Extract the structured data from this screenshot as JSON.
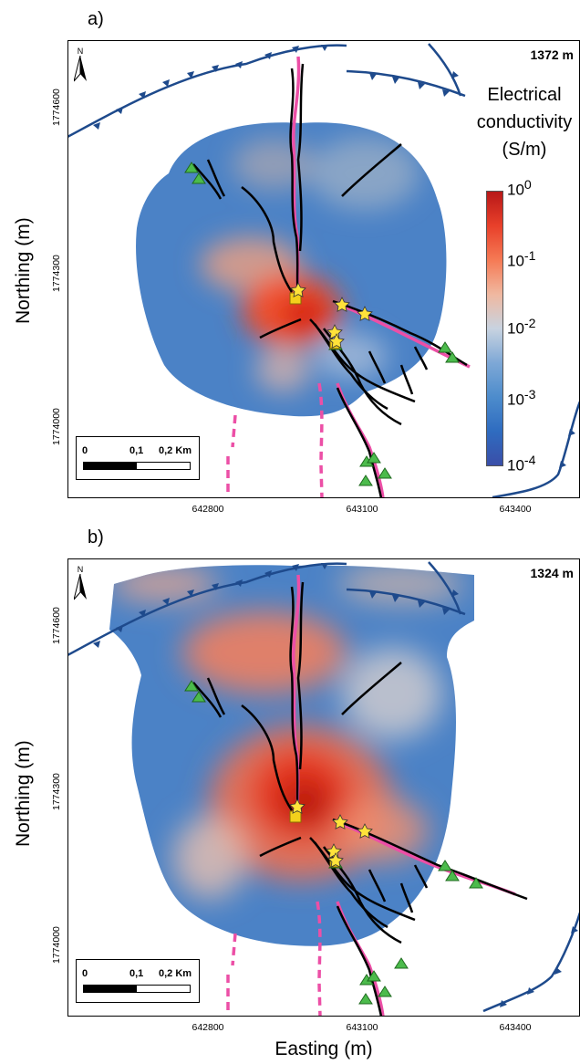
{
  "panels": [
    {
      "label": "a)",
      "depth": "1372 m",
      "anomalies": [
        {
          "cx": 275,
          "cy": 290,
          "rx": 55,
          "ry": 30,
          "c": "#f0a080",
          "o": 0.8
        },
        {
          "cx": 320,
          "cy": 340,
          "rx": 55,
          "ry": 40,
          "c": "#ff4a20",
          "o": 0.9
        },
        {
          "cx": 335,
          "cy": 345,
          "rx": 25,
          "ry": 20,
          "c": "#d01808",
          "o": 0.9
        },
        {
          "cx": 310,
          "cy": 405,
          "rx": 30,
          "ry": 25,
          "c": "#e8b8a8",
          "o": 0.7
        },
        {
          "cx": 385,
          "cy": 390,
          "rx": 40,
          "ry": 25,
          "c": "#c8d0e0",
          "o": 0.6
        },
        {
          "cx": 300,
          "cy": 180,
          "rx": 45,
          "ry": 28,
          "c": "#d8b8a8",
          "o": 0.5
        },
        {
          "cx": 400,
          "cy": 190,
          "rx": 60,
          "ry": 40,
          "c": "#c8c8c8",
          "o": 0.5
        }
      ]
    },
    {
      "label": "b)",
      "depth": "1324 m",
      "anomalies": [
        {
          "cx": 290,
          "cy": 715,
          "rx": 90,
          "ry": 45,
          "c": "#f08060",
          "o": 0.9
        },
        {
          "cx": 330,
          "cy": 880,
          "rx": 100,
          "ry": 85,
          "c": "#f07050",
          "o": 0.9
        },
        {
          "cx": 330,
          "cy": 870,
          "rx": 55,
          "ry": 50,
          "c": "#e83018",
          "o": 0.9
        },
        {
          "cx": 335,
          "cy": 880,
          "rx": 28,
          "ry": 25,
          "c": "#b01008",
          "o": 0.9
        },
        {
          "cx": 420,
          "cy": 910,
          "rx": 50,
          "ry": 35,
          "c": "#f09070",
          "o": 0.8
        },
        {
          "cx": 230,
          "cy": 940,
          "rx": 40,
          "ry": 45,
          "c": "#e8c0b0",
          "o": 0.8
        },
        {
          "cx": 430,
          "cy": 760,
          "rx": 55,
          "ry": 50,
          "c": "#e8d8d0",
          "o": 0.7
        },
        {
          "cx": 180,
          "cy": 640,
          "rx": 60,
          "ry": 20,
          "c": "#e8a890",
          "o": 0.8
        },
        {
          "cx": 440,
          "cy": 640,
          "rx": 70,
          "ry": 22,
          "c": "#d8b8a8",
          "o": 0.7
        }
      ]
    }
  ],
  "axes": {
    "xlabel": "Easting (m)",
    "ylabel": "Northing (m)",
    "xticks": [
      "642800",
      "643100",
      "643400"
    ],
    "yticks": [
      "1774600",
      "1774300",
      "1774000"
    ]
  },
  "north_arrow": "N",
  "scalebar": {
    "labels": [
      "0",
      "0,1",
      "0,2 Km"
    ]
  },
  "legend": {
    "title_lines": [
      "Electrical",
      "conductivity",
      "(S/m)"
    ],
    "ticks": [
      {
        "base": "10",
        "exp": "0"
      },
      {
        "base": "10",
        "exp": "-1"
      },
      {
        "base": "10",
        "exp": "-2"
      },
      {
        "base": "10",
        "exp": "-3"
      },
      {
        "base": "10",
        "exp": "-4"
      }
    ],
    "colormap": [
      "#3a4ea8",
      "#2f6cc0",
      "#4d8ccc",
      "#7ea8d6",
      "#c8d3e0",
      "#f0b8a0",
      "#f57a55",
      "#e8402a",
      "#b81818"
    ]
  },
  "chart_data": {
    "type": "heatmap",
    "xlabel": "Easting (m)",
    "ylabel": "Northing (m)",
    "x_ticks": [
      642800,
      643100,
      643400
    ],
    "y_ticks": [
      1774600,
      1774300,
      1774000
    ],
    "color_scale": {
      "label": "Electrical conductivity (S/m)",
      "scale": "log",
      "range": [
        0.0001,
        1
      ]
    },
    "panels": [
      {
        "label": "a)",
        "depth": "1372 m"
      },
      {
        "label": "b)",
        "depth": "1324 m"
      }
    ],
    "markers": [
      "yellow stars",
      "yellow squares",
      "green triangles"
    ],
    "lines": [
      "black structures",
      "pink solid/dashed lines",
      "blue thrust-fault lines with triangle ticks"
    ]
  }
}
